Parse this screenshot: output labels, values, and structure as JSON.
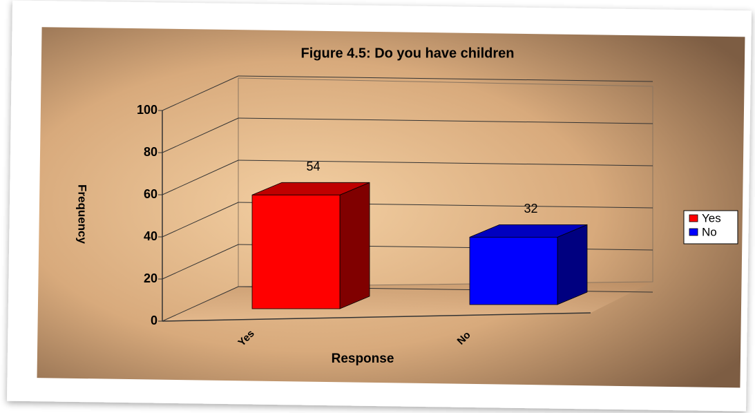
{
  "chart_data": {
    "type": "bar3d",
    "title": "Figure 4.5: Do you have children",
    "x_label": "Response",
    "y_label": "Frequency",
    "categories": [
      "Yes",
      "No"
    ],
    "values": [
      54,
      32
    ],
    "colors": [
      "#ff0000",
      "#0000ff"
    ],
    "ylim": [
      0,
      100
    ],
    "yticks": [
      0,
      20,
      40,
      60,
      80,
      100
    ],
    "grid": true,
    "legend": "right"
  }
}
